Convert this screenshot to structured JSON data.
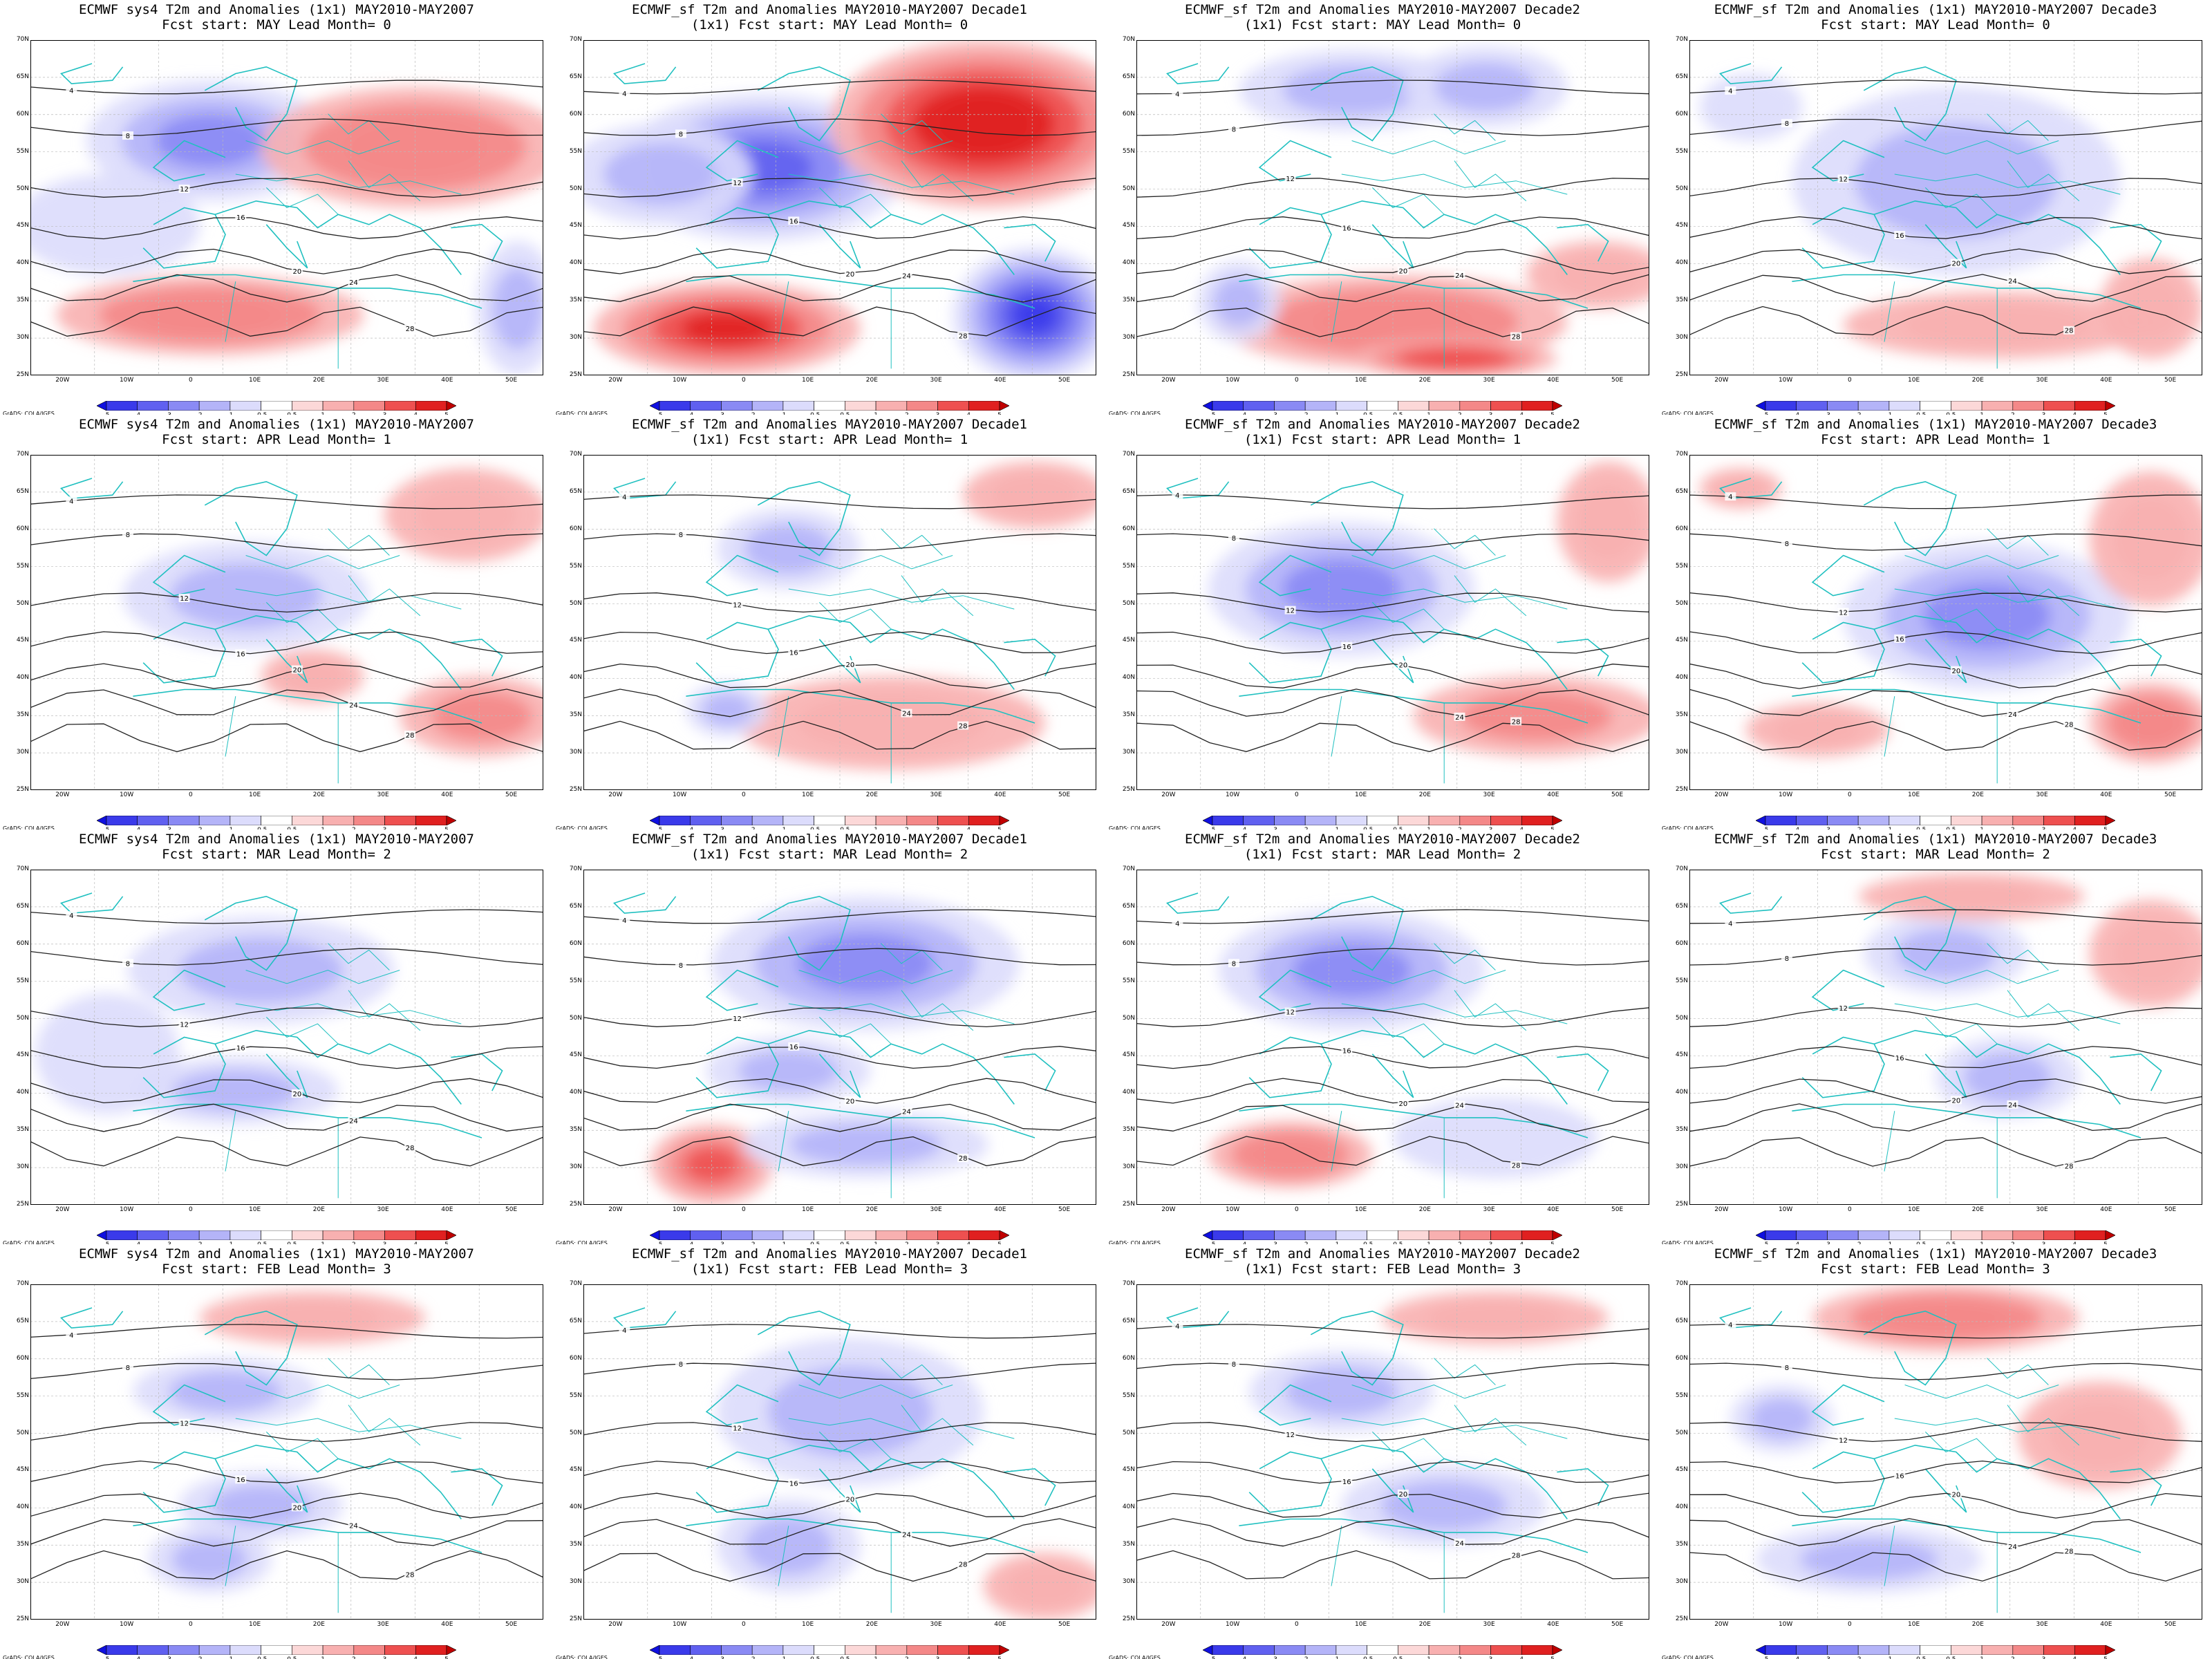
{
  "colorbar": {
    "labels": [
      "-5",
      "-4",
      "-3",
      "-2",
      "-1",
      "-0.5",
      "0.5",
      "1",
      "2",
      "3",
      "4",
      "5"
    ],
    "colors": [
      "#1010e0",
      "#3a3aea",
      "#6060f0",
      "#8a8af4",
      "#b4b4f8",
      "#dcdcfc",
      "#ffffff",
      "#fcd8d8",
      "#f8b0b0",
      "#f48888",
      "#ee5050",
      "#e02020",
      "#c00000"
    ]
  },
  "credit": "GrADS: COLA/IGES",
  "lat_labels": [
    "70N",
    "65N",
    "60N",
    "55N",
    "50N",
    "45N",
    "40N",
    "35N",
    "30N",
    "25N"
  ],
  "lon_labels": [
    "20W",
    "10W",
    "0",
    "10E",
    "20E",
    "30E",
    "40E",
    "50E"
  ],
  "panels": [
    {
      "title1": "ECMWF sys4 T2m and Anomalies (1x1) MAY2010-MAY2007",
      "title2": "Fcst start: MAY  Lead Month= 0",
      "contours": [
        "4",
        "8",
        "12",
        "16",
        "20",
        "24",
        "28"
      ],
      "blobs": [
        [
          0.35,
          0.3,
          0.24,
          0.18,
          -2.2
        ],
        [
          0.75,
          0.32,
          0.3,
          0.18,
          2.5
        ],
        [
          0.35,
          0.82,
          0.3,
          0.12,
          2.2
        ],
        [
          0.95,
          0.8,
          0.08,
          0.2,
          -2.0
        ],
        [
          0.15,
          0.55,
          0.18,
          0.15,
          -1
        ]
      ]
    },
    {
      "title1": "ECMWF_sf T2m and Anomalies MAY2010-MAY2007 Decade1",
      "title2": "(1x1) Fcst start: MAY  Lead Month= 0",
      "contours": [
        "4",
        "8",
        "12",
        "16",
        "20",
        "24",
        "28"
      ],
      "blobs": [
        [
          0.35,
          0.38,
          0.28,
          0.22,
          -3.8
        ],
        [
          0.78,
          0.25,
          0.3,
          0.25,
          4.8
        ],
        [
          0.28,
          0.86,
          0.26,
          0.14,
          4
        ],
        [
          0.88,
          0.82,
          0.16,
          0.2,
          -4.5
        ],
        [
          0.15,
          0.4,
          0.18,
          0.15,
          -1.5
        ]
      ]
    },
    {
      "title1": "ECMWF_sf T2m and Anomalies MAY2010-MAY2007 Decade2",
      "title2": "(1x1) Fcst start: MAY  Lead Month= 0",
      "contours": [
        "4",
        "8",
        "12",
        "16",
        "20",
        "24",
        "28"
      ],
      "blobs": [
        [
          0.42,
          0.15,
          0.22,
          0.12,
          -1.8
        ],
        [
          0.68,
          0.14,
          0.16,
          0.12,
          -1.8
        ],
        [
          0.5,
          0.84,
          0.34,
          0.14,
          2.4
        ],
        [
          0.62,
          0.95,
          0.2,
          0.06,
          3.2
        ],
        [
          0.2,
          0.78,
          0.08,
          0.12,
          -1.5
        ],
        [
          0.9,
          0.7,
          0.14,
          0.1,
          1.5
        ]
      ]
    },
    {
      "title1": "ECMWF_sf T2m and Anomalies (1x1) MAY2010-MAY2007 Decade3",
      "title2": "Fcst start: MAY  Lead Month= 0",
      "contours": [
        "4",
        "8",
        "12",
        "16",
        "20",
        "24",
        "28"
      ],
      "blobs": [
        [
          0.52,
          0.42,
          0.32,
          0.28,
          -2.0
        ],
        [
          0.6,
          0.85,
          0.3,
          0.1,
          1.5
        ],
        [
          0.9,
          0.8,
          0.1,
          0.15,
          1.5
        ],
        [
          0.12,
          0.2,
          0.1,
          0.1,
          -1
        ]
      ]
    },
    {
      "title1": "ECMWF sys4 T2m and Anomalies (1x1) MAY2010-MAY2007",
      "title2": "Fcst start: APR  Lead Month= 1",
      "contours": [
        "4",
        "8",
        "12",
        "16",
        "20",
        "24",
        "28"
      ],
      "blobs": [
        [
          0.42,
          0.42,
          0.24,
          0.16,
          -2.0
        ],
        [
          0.85,
          0.18,
          0.16,
          0.14,
          1.5
        ],
        [
          0.88,
          0.78,
          0.16,
          0.12,
          2.0
        ],
        [
          0.55,
          0.66,
          0.1,
          0.08,
          1.5
        ]
      ]
    },
    {
      "title1": "ECMWF_sf T2m and Anomalies MAY2010-MAY2007 Decade1",
      "title2": "(1x1) Fcst start: APR  Lead Month= 1",
      "contours": [
        "4",
        "8",
        "12",
        "16",
        "20",
        "24",
        "28"
      ],
      "blobs": [
        [
          0.4,
          0.28,
          0.14,
          0.12,
          -1.5
        ],
        [
          0.6,
          0.8,
          0.3,
          0.14,
          1.5
        ],
        [
          0.88,
          0.12,
          0.14,
          0.1,
          1.5
        ],
        [
          0.28,
          0.76,
          0.08,
          0.08,
          -1.5
        ]
      ]
    },
    {
      "title1": "ECMWF_sf T2m and Anomalies MAY2010-MAY2007 Decade2",
      "title2": "(1x1) Fcst start: APR  Lead Month= 1",
      "contours": [
        "4",
        "8",
        "12",
        "16",
        "20",
        "24",
        "28"
      ],
      "blobs": [
        [
          0.4,
          0.4,
          0.26,
          0.2,
          -2.2
        ],
        [
          0.78,
          0.78,
          0.24,
          0.12,
          2.0
        ],
        [
          0.92,
          0.2,
          0.1,
          0.18,
          1.5
        ]
      ]
    },
    {
      "title1": "ECMWF_sf T2m and Anomalies (1x1) MAY2010-MAY2007 Decade3",
      "title2": "Fcst start: APR  Lead Month= 1",
      "contours": [
        "4",
        "8",
        "12",
        "16",
        "20",
        "24",
        "28"
      ],
      "blobs": [
        [
          0.58,
          0.48,
          0.28,
          0.22,
          -2.8
        ],
        [
          0.9,
          0.25,
          0.12,
          0.2,
          1.8
        ],
        [
          0.9,
          0.8,
          0.12,
          0.12,
          2.5
        ],
        [
          0.25,
          0.82,
          0.14,
          0.08,
          1.5
        ],
        [
          0.1,
          0.1,
          0.08,
          0.06,
          1.2
        ]
      ]
    },
    {
      "title1": "ECMWF sys4 T2m and Anomalies (1x1) MAY2010-MAY2007",
      "title2": "Fcst start: MAR  Lead Month= 2",
      "contours": [
        "4",
        "8",
        "12",
        "16",
        "20",
        "24",
        "28"
      ],
      "blobs": [
        [
          0.45,
          0.3,
          0.26,
          0.16,
          -2.0
        ],
        [
          0.4,
          0.66,
          0.2,
          0.1,
          -1.2
        ],
        [
          0.15,
          0.55,
          0.14,
          0.18,
          -1
        ]
      ]
    },
    {
      "title1": "ECMWF_sf T2m and Anomalies MAY2010-MAY2007 Decade1",
      "title2": "(1x1) Fcst start: MAR  Lead Month= 2",
      "contours": [
        "4",
        "8",
        "12",
        "16",
        "20",
        "24",
        "28"
      ],
      "blobs": [
        [
          0.55,
          0.28,
          0.3,
          0.2,
          -2.8
        ],
        [
          0.25,
          0.88,
          0.12,
          0.12,
          3.0
        ],
        [
          0.55,
          0.82,
          0.24,
          0.1,
          -1.8
        ],
        [
          0.4,
          0.6,
          0.16,
          0.1,
          -1.5
        ]
      ]
    },
    {
      "title1": "ECMWF_sf T2m and Anomalies MAY2010-MAY2007 Decade2",
      "title2": "(1x1) Fcst start: MAR  Lead Month= 2",
      "contours": [
        "4",
        "8",
        "12",
        "16",
        "20",
        "24",
        "28"
      ],
      "blobs": [
        [
          0.42,
          0.3,
          0.26,
          0.18,
          -2.3
        ],
        [
          0.3,
          0.85,
          0.16,
          0.1,
          2.3
        ],
        [
          0.7,
          0.8,
          0.2,
          0.12,
          -0.8
        ]
      ]
    },
    {
      "title1": "ECMWF_sf T2m and Anomalies (1x1) MAY2010-MAY2007 Decade3",
      "title2": "Fcst start: MAR  Lead Month= 2",
      "contours": [
        "4",
        "8",
        "12",
        "16",
        "20",
        "24",
        "28"
      ],
      "blobs": [
        [
          0.5,
          0.25,
          0.16,
          0.12,
          -1.6
        ],
        [
          0.62,
          0.62,
          0.14,
          0.12,
          -1.8
        ],
        [
          0.55,
          0.08,
          0.22,
          0.07,
          1.3
        ],
        [
          0.9,
          0.25,
          0.12,
          0.16,
          1.3
        ]
      ]
    },
    {
      "title1": "ECMWF sys4 T2m and Anomalies (1x1) MAY2010-MAY2007",
      "title2": "Fcst start: FEB  Lead Month= 3",
      "contours": [
        "4",
        "8",
        "12",
        "16",
        "20",
        "24",
        "28"
      ],
      "blobs": [
        [
          0.55,
          0.1,
          0.22,
          0.08,
          1.8
        ],
        [
          0.38,
          0.32,
          0.18,
          0.1,
          -1.5
        ],
        [
          0.45,
          0.66,
          0.16,
          0.1,
          -1.5
        ],
        [
          0.35,
          0.82,
          0.12,
          0.1,
          -1.3
        ]
      ]
    },
    {
      "title1": "ECMWF_sf T2m and Anomalies MAY2010-MAY2007 Decade1",
      "title2": "(1x1) Fcst start: FEB  Lead Month= 3",
      "contours": [
        "4",
        "8",
        "12",
        "16",
        "20",
        "24",
        "28"
      ],
      "blobs": [
        [
          0.52,
          0.38,
          0.26,
          0.22,
          -1.8
        ],
        [
          0.4,
          0.78,
          0.14,
          0.14,
          -1.5
        ],
        [
          0.9,
          0.9,
          0.12,
          0.1,
          1.5
        ]
      ]
    },
    {
      "title1": "ECMWF_sf T2m and Anomalies MAY2010-MAY2007 Decade2",
      "title2": "(1x1) Fcst start: FEB  Lead Month= 3",
      "contours": [
        "4",
        "8",
        "12",
        "16",
        "20",
        "24",
        "28"
      ],
      "blobs": [
        [
          0.4,
          0.32,
          0.18,
          0.12,
          -1.8
        ],
        [
          0.6,
          0.66,
          0.2,
          0.12,
          -1.6
        ],
        [
          0.7,
          0.1,
          0.22,
          0.08,
          1.2
        ]
      ]
    },
    {
      "title1": "ECMWF_sf T2m and Anomalies (1x1) MAY2010-MAY2007 Decade3",
      "title2": "Fcst start: FEB  Lead Month= 3",
      "contours": [
        "4",
        "8",
        "12",
        "16",
        "20",
        "24",
        "28"
      ],
      "blobs": [
        [
          0.5,
          0.1,
          0.26,
          0.1,
          2.8
        ],
        [
          0.35,
          0.82,
          0.22,
          0.1,
          -2.0
        ],
        [
          0.18,
          0.4,
          0.1,
          0.1,
          -1.2
        ],
        [
          0.8,
          0.45,
          0.16,
          0.16,
          1.2
        ]
      ]
    }
  ]
}
